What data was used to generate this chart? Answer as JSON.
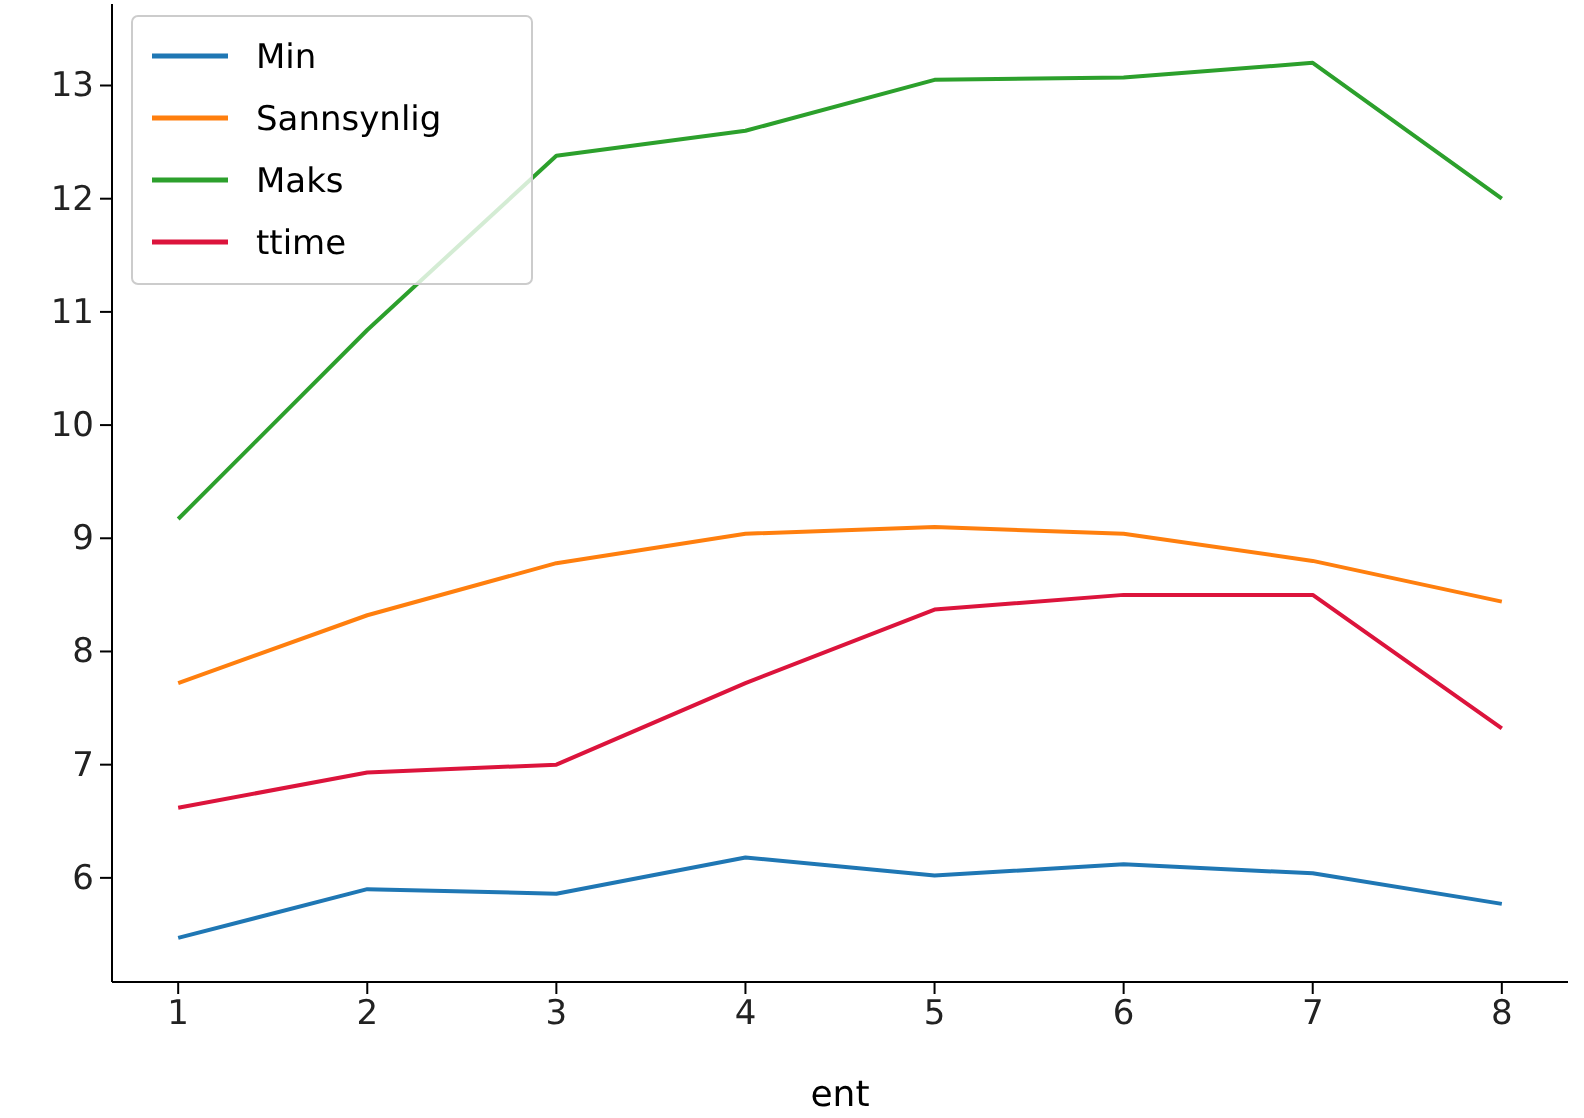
{
  "chart_data": {
    "type": "line",
    "xlabel": "ent",
    "x": [
      1,
      2,
      3,
      4,
      5,
      6,
      7,
      8
    ],
    "series": [
      {
        "name": "Min",
        "color": "#1f77b4",
        "values": [
          5.47,
          5.9,
          5.86,
          6.18,
          6.02,
          6.12,
          6.04,
          5.77
        ]
      },
      {
        "name": "Sannsynlig",
        "color": "#ff7f0e",
        "values": [
          7.72,
          8.32,
          8.78,
          9.04,
          9.1,
          9.04,
          8.8,
          8.44
        ]
      },
      {
        "name": "Maks",
        "color": "#2ca02c",
        "values": [
          9.17,
          10.84,
          12.38,
          12.6,
          13.05,
          13.07,
          13.2,
          12.0
        ]
      },
      {
        "name": "ttime",
        "color": "#dc143c",
        "values": [
          6.62,
          6.93,
          7.0,
          7.72,
          8.37,
          8.5,
          8.5,
          7.32
        ]
      }
    ],
    "xlim": [
      0.65,
      8.35
    ],
    "ylim": [
      5.08,
      13.72
    ],
    "xticks": [
      1,
      2,
      3,
      4,
      5,
      6,
      7,
      8
    ],
    "yticks": [
      6,
      7,
      8,
      9,
      10,
      11,
      12,
      13
    ],
    "grid": false,
    "legend": "top left",
    "marker": "none",
    "line_style": "solid"
  }
}
